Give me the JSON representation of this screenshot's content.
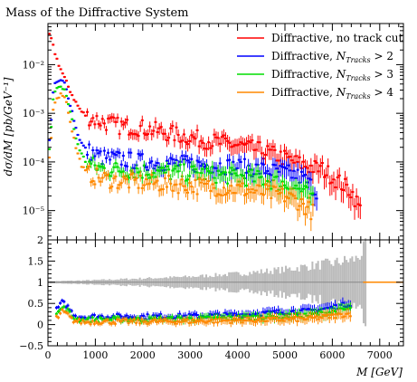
{
  "chart_data": [
    {
      "type": "scatter",
      "title": "Mass of the Diffractive System",
      "ylabel": "dσ/dM [pb/GeV⁻¹]",
      "yscale": "log",
      "xlim": [
        0,
        7500
      ],
      "ylim": [
        2.5e-06,
        0.07
      ],
      "yticks": [
        {
          "value": 0.01,
          "label": "10⁻²"
        },
        {
          "value": 0.001,
          "label": "10⁻³"
        },
        {
          "value": 0.0001,
          "label": "10⁻⁴"
        },
        {
          "value": 1e-05,
          "label": "10⁻⁵"
        }
      ],
      "legend_position": "top-right",
      "series": [
        {
          "name": "Diffractive, no track cut",
          "color": "#ff0000",
          "x": [
            40,
            80,
            120,
            160,
            200,
            260,
            320,
            400,
            500,
            600,
            700,
            800,
            900,
            1000,
            1200,
            1500,
            1800,
            2000,
            2500,
            3000,
            3500,
            4000,
            4500,
            5000,
            5200,
            5500,
            5800,
            6000,
            6200,
            6400,
            6600
          ],
          "y": [
            0.042,
            0.03,
            0.022,
            0.016,
            0.012,
            0.0085,
            0.0062,
            0.0041,
            0.0025,
            0.0016,
            0.0011,
            0.0009,
            0.0008,
            0.00075,
            0.00065,
            0.00055,
            0.00052,
            0.0005,
            0.0004,
            0.00032,
            0.00026,
            0.00022,
            0.00017,
            0.00012,
            0.0001,
            8e-05,
            7e-05,
            5e-05,
            3.5e-05,
            2.5e-05,
            1e-05
          ]
        },
        {
          "name": "Diffractive, N_Tracks > 2",
          "color": "#0000ff",
          "x": [
            40,
            120,
            200,
            300,
            360,
            400,
            500,
            600,
            700,
            800,
            1000,
            1200,
            1500,
            2000,
            2500,
            3000,
            3500,
            4000,
            4500,
            5000,
            5200,
            5400,
            5600,
            5700
          ],
          "y": [
            0.0003,
            0.0035,
            0.0045,
            0.0046,
            0.004,
            0.0028,
            0.0012,
            0.00045,
            0.00025,
            0.00018,
            0.00014,
            0.00012,
            0.000115,
            0.0001,
            9.5e-05,
            9e-05,
            8.5e-05,
            8e-05,
            7e-05,
            6e-05,
            5.5e-05,
            4.5e-05,
            3e-05,
            2e-05
          ]
        },
        {
          "name": "Diffractive, N_Tracks > 3",
          "color": "#00dd00",
          "x": [
            40,
            120,
            200,
            300,
            360,
            400,
            500,
            600,
            700,
            800,
            1000,
            1200,
            1500,
            2000,
            2500,
            3000,
            3500,
            4000,
            4500,
            5000,
            5200,
            5400,
            5600
          ],
          "y": [
            0.0002,
            0.0025,
            0.0032,
            0.0034,
            0.003,
            0.0021,
            0.0008,
            0.00028,
            0.00015,
            0.0001,
            8e-05,
            7e-05,
            7e-05,
            6.5e-05,
            6e-05,
            6e-05,
            5.5e-05,
            5e-05,
            4.5e-05,
            3.5e-05,
            3e-05,
            2.5e-05,
            1.5e-05
          ]
        },
        {
          "name": "Diffractive, N_Tracks > 4",
          "color": "#ff8800",
          "x": [
            40,
            120,
            200,
            300,
            360,
            400,
            500,
            600,
            700,
            800,
            1000,
            1200,
            1500,
            2000,
            2500,
            3000,
            3500,
            4000,
            4500,
            5000,
            5200,
            5400,
            5600
          ],
          "y": [
            0.00012,
            0.0016,
            0.0022,
            0.0025,
            0.0022,
            0.0015,
            0.0005,
            0.00018,
            9e-05,
            6e-05,
            5e-05,
            4.5e-05,
            4e-05,
            3.8e-05,
            3.5e-05,
            3.3e-05,
            3e-05,
            2.8e-05,
            2.4e-05,
            2e-05,
            1.7e-05,
            1.3e-05,
            9e-06
          ]
        }
      ]
    },
    {
      "type": "scatter",
      "xlabel": "M [GeV]",
      "xlim": [
        0,
        7500
      ],
      "ylim": [
        -0.5,
        2
      ],
      "xticks": [
        0,
        1000,
        2000,
        3000,
        4000,
        5000,
        6000,
        7000
      ],
      "yticks": [
        -0.5,
        0,
        0.5,
        1,
        1.5,
        2
      ],
      "ytick_labels": [
        "−0.5",
        "0",
        "0.5",
        "1",
        "1.5",
        "2"
      ],
      "reference_line": 1,
      "reference_band": {
        "x": [
          0,
          1000,
          2000,
          3000,
          4000,
          5000,
          5500,
          6000,
          6500,
          6700
        ],
        "halfwidth": [
          0.02,
          0.05,
          0.09,
          0.13,
          0.2,
          0.3,
          0.38,
          0.45,
          0.55,
          0.8
        ]
      },
      "series": [
        {
          "name": "Diffractive, N_Tracks > 2",
          "color": "#0000ff",
          "x": [
            200,
            300,
            400,
            500,
            600,
            800,
            1000,
            2000,
            3000,
            4000,
            5000,
            5500,
            6000,
            6400
          ],
          "y": [
            0.38,
            0.52,
            0.45,
            0.3,
            0.2,
            0.18,
            0.19,
            0.19,
            0.2,
            0.23,
            0.3,
            0.32,
            0.4,
            0.5
          ]
        },
        {
          "name": "Diffractive, N_Tracks > 3",
          "color": "#00dd00",
          "x": [
            200,
            300,
            400,
            500,
            600,
            800,
            1000,
            2000,
            3000,
            4000,
            5000,
            5500,
            6000,
            6400
          ],
          "y": [
            0.26,
            0.4,
            0.36,
            0.2,
            0.13,
            0.11,
            0.12,
            0.12,
            0.13,
            0.16,
            0.2,
            0.22,
            0.3,
            0.38
          ]
        },
        {
          "name": "Diffractive, N_Tracks > 4",
          "color": "#ff8800",
          "x": [
            200,
            300,
            400,
            500,
            600,
            800,
            1000,
            2000,
            3000,
            4000,
            5000,
            5500,
            6000,
            6400
          ],
          "y": [
            0.16,
            0.3,
            0.25,
            0.12,
            0.08,
            0.06,
            0.07,
            0.07,
            0.08,
            0.1,
            0.12,
            0.14,
            0.2,
            0.26
          ]
        }
      ]
    }
  ]
}
